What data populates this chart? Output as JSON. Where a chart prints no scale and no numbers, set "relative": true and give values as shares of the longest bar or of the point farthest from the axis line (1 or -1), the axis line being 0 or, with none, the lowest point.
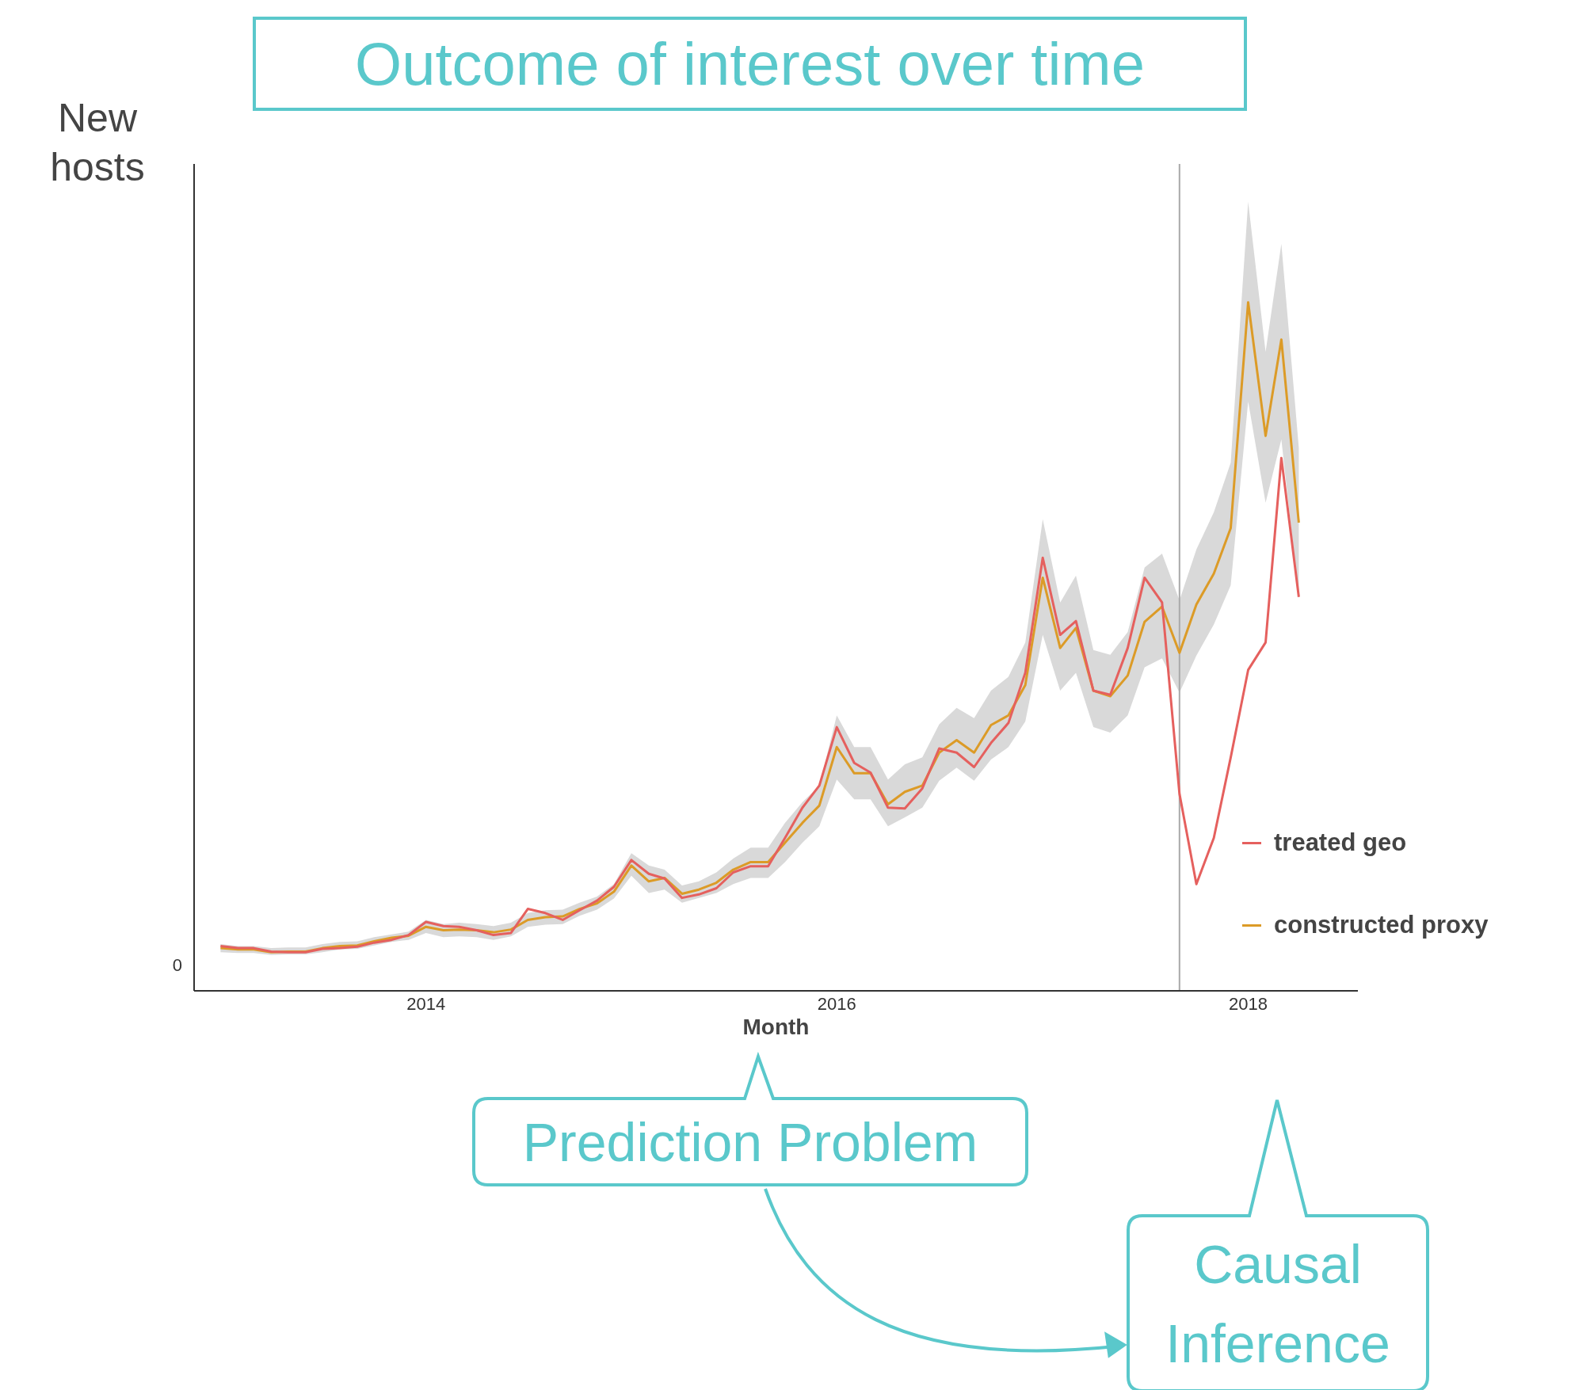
{
  "chart_data": {
    "type": "line",
    "relative": true,
    "title": "Outcome of interest over time",
    "xlabel": "Month",
    "ylabel": "New hosts",
    "marker": "none",
    "line_style": "solid",
    "legend": "right",
    "x": [
      "2013-01",
      "2013-02",
      "2013-03",
      "2013-04",
      "2013-05",
      "2013-06",
      "2013-07",
      "2013-08",
      "2013-09",
      "2013-10",
      "2013-11",
      "2013-12",
      "2014-01",
      "2014-02",
      "2014-03",
      "2014-04",
      "2014-05",
      "2014-06",
      "2014-07",
      "2014-08",
      "2014-09",
      "2014-10",
      "2014-11",
      "2014-12",
      "2015-01",
      "2015-02",
      "2015-03",
      "2015-04",
      "2015-05",
      "2015-06",
      "2015-07",
      "2015-08",
      "2015-09",
      "2015-10",
      "2015-11",
      "2015-12",
      "2016-01",
      "2016-02",
      "2016-03",
      "2016-04",
      "2016-05",
      "2016-06",
      "2016-07",
      "2016-08",
      "2016-09",
      "2016-10",
      "2016-11",
      "2016-12",
      "2017-01",
      "2017-02",
      "2017-03",
      "2017-04",
      "2017-05",
      "2017-06",
      "2017-07",
      "2017-08",
      "2017-09",
      "2017-10",
      "2017-11",
      "2017-12",
      "2018-01",
      "2018-02",
      "2018-03",
      "2018-04"
    ],
    "xlim": [
      "2012-11-15",
      "2018-07-15"
    ],
    "xticks": [
      "2014",
      "2016",
      "2018"
    ],
    "series": [
      {
        "name": "constructed proxy",
        "color": "#dc9b27",
        "values": [
          0.062,
          0.06,
          0.06,
          0.056,
          0.057,
          0.057,
          0.062,
          0.065,
          0.066,
          0.072,
          0.077,
          0.08,
          0.093,
          0.088,
          0.089,
          0.088,
          0.085,
          0.089,
          0.103,
          0.107,
          0.108,
          0.119,
          0.127,
          0.144,
          0.182,
          0.159,
          0.164,
          0.141,
          0.147,
          0.157,
          0.176,
          0.187,
          0.187,
          0.215,
          0.244,
          0.269,
          0.354,
          0.316,
          0.316,
          0.271,
          0.289,
          0.298,
          0.346,
          0.364,
          0.346,
          0.386,
          0.4,
          0.444,
          0.6,
          0.498,
          0.527,
          0.436,
          0.428,
          0.458,
          0.536,
          0.558,
          0.491,
          0.561,
          0.606,
          0.672,
          1,
          0.806,
          0.946,
          0.68
        ],
        "upper": [
          0.068,
          0.065,
          0.065,
          0.062,
          0.063,
          0.063,
          0.068,
          0.071,
          0.072,
          0.078,
          0.082,
          0.086,
          0.103,
          0.097,
          0.099,
          0.097,
          0.094,
          0.099,
          0.113,
          0.117,
          0.118,
          0.128,
          0.137,
          0.155,
          0.2,
          0.182,
          0.176,
          0.153,
          0.159,
          0.172,
          0.192,
          0.208,
          0.208,
          0.244,
          0.274,
          0.298,
          0.4,
          0.354,
          0.354,
          0.307,
          0.329,
          0.339,
          0.387,
          0.411,
          0.396,
          0.436,
          0.456,
          0.506,
          0.685,
          0.564,
          0.603,
          0.495,
          0.488,
          0.521,
          0.615,
          0.635,
          0.567,
          0.641,
          0.695,
          0.767,
          1.146,
          0.928,
          1.085,
          0.789
        ],
        "lower": [
          0.056,
          0.055,
          0.055,
          0.052,
          0.053,
          0.053,
          0.056,
          0.06,
          0.061,
          0.066,
          0.071,
          0.074,
          0.084,
          0.078,
          0.079,
          0.078,
          0.074,
          0.079,
          0.093,
          0.096,
          0.097,
          0.109,
          0.118,
          0.134,
          0.167,
          0.142,
          0.147,
          0.128,
          0.135,
          0.142,
          0.155,
          0.164,
          0.164,
          0.187,
          0.215,
          0.239,
          0.307,
          0.278,
          0.278,
          0.239,
          0.252,
          0.266,
          0.305,
          0.324,
          0.305,
          0.336,
          0.354,
          0.391,
          0.517,
          0.436,
          0.462,
          0.383,
          0.375,
          0.4,
          0.47,
          0.483,
          0.433,
          0.487,
          0.532,
          0.589,
          0.856,
          0.709,
          0.801,
          0.572
        ]
      },
      {
        "name": "treated geo",
        "color": "#e5605e",
        "values": [
          0.065,
          0.062,
          0.062,
          0.057,
          0.056,
          0.056,
          0.061,
          0.062,
          0.064,
          0.07,
          0.074,
          0.081,
          0.1,
          0.094,
          0.093,
          0.088,
          0.081,
          0.084,
          0.119,
          0.113,
          0.103,
          0.117,
          0.131,
          0.151,
          0.19,
          0.17,
          0.163,
          0.135,
          0.14,
          0.149,
          0.172,
          0.181,
          0.181,
          0.222,
          0.266,
          0.298,
          0.383,
          0.331,
          0.317,
          0.266,
          0.265,
          0.294,
          0.352,
          0.346,
          0.325,
          0.36,
          0.389,
          0.462,
          0.629,
          0.517,
          0.537,
          0.436,
          0.43,
          0.498,
          0.6,
          0.564,
          0.286,
          0.155,
          0.222,
          0.339,
          0.466,
          0.506,
          0.774,
          0.572
        ]
      }
    ],
    "ref_lines": [
      {
        "axis": "x",
        "value": "2017-09",
        "color": "#aaaaaa"
      }
    ],
    "annotations": [
      "0",
      "Prediction Problem",
      "Causal Inference"
    ]
  }
}
